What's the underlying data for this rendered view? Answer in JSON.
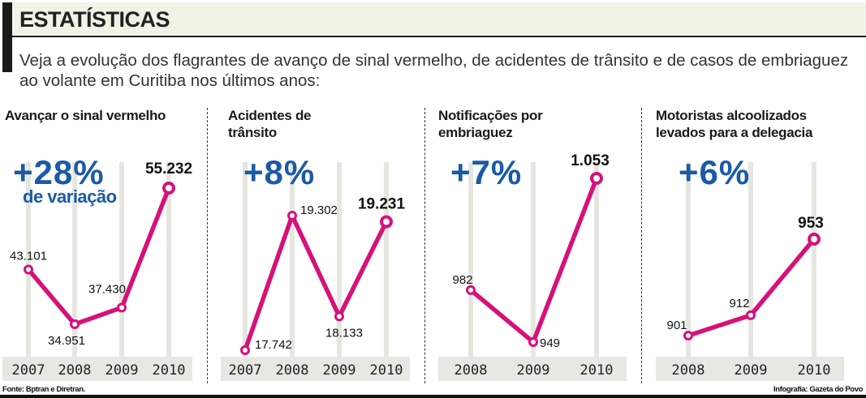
{
  "header": {
    "title": "ESTATÍSTICAS"
  },
  "intro": "Veja a evolução dos flagrantes de avanço de sinal vermelho, de acidentes de trânsito e de casos de embriaguez ao volante em Curitiba nos últimos anos:",
  "colors": {
    "line": "#d6117a",
    "accent": "#1a5aa6",
    "year_band": "#e8e8e3",
    "gridline": "#e6e6e1",
    "header_bg": "#f1f3e6"
  },
  "chart_data": [
    {
      "type": "line",
      "title": "Avançar o sinal vermelho",
      "change": "+28%",
      "change_note": "de variação",
      "categories": [
        "2007",
        "2008",
        "2009",
        "2010"
      ],
      "values": [
        43101,
        34951,
        37430,
        55232
      ],
      "labels": [
        "43.101",
        "34.951",
        "37.430",
        "55.232"
      ],
      "grid": true
    },
    {
      "type": "line",
      "title": "Acidentes de trânsito",
      "change": "+8%",
      "categories": [
        "2007",
        "2008",
        "2009",
        "2010"
      ],
      "values": [
        17742,
        19302,
        18133,
        19231
      ],
      "labels": [
        "17.742",
        "19.302",
        "18.133",
        "19.231"
      ],
      "grid": true
    },
    {
      "type": "line",
      "title": "Notificações por embriaguez",
      "change": "+7%",
      "categories": [
        "2008",
        "2009",
        "2010"
      ],
      "values": [
        982,
        949,
        1053
      ],
      "labels": [
        "982",
        "949",
        "1.053"
      ],
      "grid": true
    },
    {
      "type": "line",
      "title": "Motoristas alcoolizados levados para a delegacia",
      "change": "+6%",
      "categories": [
        "2008",
        "2009",
        "2010"
      ],
      "values": [
        901,
        912,
        953
      ],
      "labels": [
        "901",
        "912",
        "953"
      ],
      "grid": true
    }
  ],
  "footer": {
    "source": "Fonte: Bptran e Diretran.",
    "credit": "Infografia: Gazeta do Povo"
  }
}
